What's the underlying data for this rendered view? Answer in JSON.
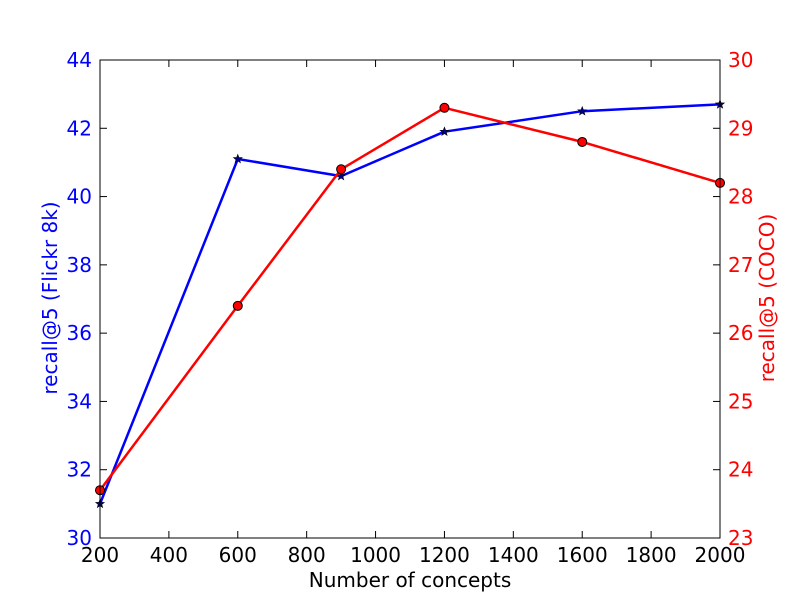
{
  "chart_data": {
    "type": "line",
    "title": "",
    "xlabel": "Number of concepts",
    "x": [
      200,
      600,
      900,
      1200,
      1600,
      2000
    ],
    "xlim": [
      200,
      2000
    ],
    "xticks": [
      200,
      400,
      600,
      800,
      1000,
      1200,
      1400,
      1600,
      1800,
      2000
    ],
    "y_left": {
      "label": "recall@5 (Flickr 8k)",
      "lim": [
        30,
        44
      ],
      "ticks": [
        30,
        32,
        34,
        36,
        38,
        40,
        42,
        44
      ],
      "color": "#0000ff"
    },
    "y_right": {
      "label": "recall@5 (COCO)",
      "lim": [
        23,
        30
      ],
      "ticks": [
        23,
        24,
        25,
        26,
        27,
        28,
        29,
        30
      ],
      "color": "#ff0000"
    },
    "series": [
      {
        "axis": "left",
        "color": "#0000ff",
        "marker": "star",
        "values": [
          31.0,
          41.1,
          40.6,
          41.9,
          42.5,
          42.7
        ]
      },
      {
        "axis": "right",
        "color": "#ff0000",
        "marker": "circle",
        "values": [
          23.7,
          26.4,
          28.4,
          29.3,
          28.8,
          28.2
        ]
      }
    ],
    "grid": false,
    "legend": "none"
  }
}
